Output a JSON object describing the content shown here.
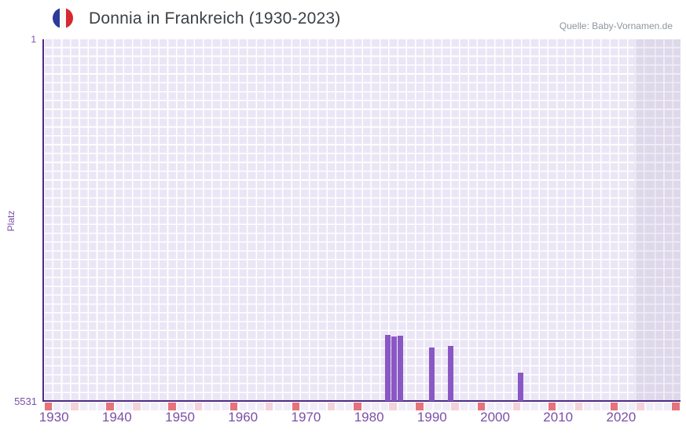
{
  "header": {
    "title": "Donnia in Frankreich (1930-2023)",
    "source": "Quelle: Baby-Vornamen.de",
    "flag_icon": "france-flag-icon"
  },
  "chart_data": {
    "type": "bar",
    "title": "Donnia in Frankreich (1930-2023)",
    "xlabel": "",
    "ylabel": "Platz",
    "y_axis": {
      "top_tick_label": "1",
      "bottom_tick_label": "5531",
      "min": 1,
      "max": 5531,
      "inverted": true
    },
    "x_axis": {
      "range_start": 1928,
      "range_end": 2030,
      "tick_years": [
        1930,
        1940,
        1950,
        1960,
        1970,
        1980,
        1990,
        2000,
        2010,
        2020
      ]
    },
    "bars": [
      {
        "year": 1983,
        "platz": 4520
      },
      {
        "year": 1984,
        "platz": 4545
      },
      {
        "year": 1985,
        "platz": 4535
      },
      {
        "year": 1990,
        "platz": 4710
      },
      {
        "year": 1993,
        "platz": 4690
      },
      {
        "year": 2004,
        "platz": 5100
      }
    ],
    "rug_ticks": {
      "red_decade_years": [
        1930,
        1940,
        1950,
        1960,
        1970,
        1980,
        1990,
        2000,
        2010,
        2020,
        2030
      ],
      "pink_half_decade_years": [
        1935,
        1945,
        1955,
        1965,
        1975,
        1985,
        1995,
        2005,
        2015,
        2025
      ]
    },
    "shaded_region": {
      "from_year": 2022,
      "to_year": 2030
    },
    "grid": true,
    "legend_position": "none"
  },
  "colors": {
    "bar": "#8a58c4",
    "axis_line": "#4e2b84",
    "tick_label": "#7a50a8",
    "grid_cell": "#ebe6f5",
    "shaded_cell": "#ded8eb",
    "rug_cell": "#f1edf8",
    "rug_red": "#e5737c",
    "rug_pink": "#f4d2d9",
    "title_text": "#3b4147",
    "source_text": "#8e969d"
  }
}
